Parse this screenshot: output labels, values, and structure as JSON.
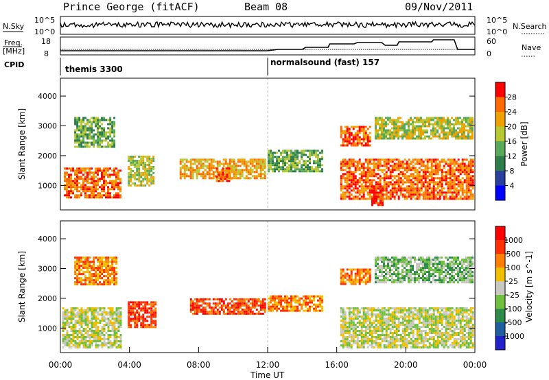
{
  "header": {
    "station": "Prince George (fitACF)",
    "beam": "Beam 08",
    "date": "09/Nov/2011"
  },
  "top_panels": {
    "nsky_label": "N.Sky",
    "nsearch_label": "N.Search",
    "freq_label_1": "Freq.",
    "freq_label_2": "[MHz]",
    "nave_label": "Nave",
    "cpid_label": "CPID",
    "n_ticks": [
      "10^5",
      "10^0"
    ],
    "n_ticks_right": [
      "10^5",
      "10^0"
    ],
    "freq_ticks": [
      "18",
      "8"
    ],
    "nave_ticks": [
      "60",
      "0"
    ],
    "cpid_segments": [
      {
        "label": "themis 3300",
        "start_hr": 0.0
      },
      {
        "label": "normalsound (fast) 157",
        "start_hr": 12.0
      }
    ]
  },
  "chart_data": [
    {
      "type": "heatmap",
      "name": "power",
      "title": "",
      "xlabel": "",
      "ylabel": "Slant Range [km]",
      "xlim": [
        0,
        24
      ],
      "ylim": [
        180,
        4600
      ],
      "yticks": [
        1000,
        2000,
        3000,
        4000
      ],
      "colorbar_label": "Power [dB]",
      "colorbar_ticks": [
        "28",
        "24",
        "20",
        "16",
        "12",
        "8",
        "4"
      ],
      "colors": [
        "#0000ff",
        "#2b3f9e",
        "#2e7c4a",
        "#5aa85a",
        "#b8c832",
        "#f0a000",
        "#ff6a00",
        "#ff0000"
      ],
      "regions": [
        {
          "t0": 0.2,
          "t1": 3.6,
          "r0": 500,
          "r1": 1600,
          "level": 6
        },
        {
          "t0": 0.8,
          "t1": 3.3,
          "r0": 2200,
          "r1": 3300,
          "level": 3
        },
        {
          "t0": 3.9,
          "t1": 5.5,
          "r0": 900,
          "r1": 2000,
          "level": 4
        },
        {
          "t0": 6.9,
          "t1": 12.0,
          "r0": 1200,
          "r1": 1900,
          "level": 5
        },
        {
          "t0": 9.0,
          "t1": 10.0,
          "r0": 1100,
          "r1": 1600,
          "level": 6
        },
        {
          "t0": 12.0,
          "t1": 15.3,
          "r0": 1400,
          "r1": 2200,
          "level": 3
        },
        {
          "t0": 16.2,
          "t1": 24.0,
          "r0": 500,
          "r1": 1900,
          "level": 6
        },
        {
          "t0": 16.2,
          "t1": 18.0,
          "r0": 2300,
          "r1": 3000,
          "level": 6
        },
        {
          "t0": 18.2,
          "t1": 24.0,
          "r0": 2500,
          "r1": 3300,
          "level": 4
        },
        {
          "t0": 18.0,
          "t1": 18.8,
          "r0": 300,
          "r1": 1000,
          "level": 7
        }
      ]
    },
    {
      "type": "heatmap",
      "name": "velocity",
      "title": "",
      "xlabel": "Time UT",
      "ylabel": "Slant Range [km]",
      "xlim": [
        0,
        24
      ],
      "ylim": [
        180,
        4600
      ],
      "yticks": [
        1000,
        2000,
        3000,
        4000
      ],
      "xticks": [
        "00:00",
        "04:00",
        "08:00",
        "12:00",
        "16:00",
        "20:00",
        "00:00"
      ],
      "colorbar_label": "Velocity [m s^-1]",
      "colorbar_ticks": [
        "1000",
        "500",
        "100",
        "25",
        "-25",
        "-100",
        "-500",
        "-1000"
      ],
      "colors": [
        "#2222cc",
        "#1f5fa0",
        "#2e8c4a",
        "#70c040",
        "#c8c8c0",
        "#f0c000",
        "#ff8000",
        "#ff3000",
        "#ff0000"
      ],
      "regions": [
        {
          "t0": 0.1,
          "t1": 3.6,
          "r0": 300,
          "r1": 1700,
          "level": 4
        },
        {
          "t0": 0.8,
          "t1": 3.4,
          "r0": 2400,
          "r1": 3400,
          "level": 6
        },
        {
          "t0": 3.9,
          "t1": 5.6,
          "r0": 1000,
          "r1": 1900,
          "level": 7
        },
        {
          "t0": 7.5,
          "t1": 12.0,
          "r0": 1400,
          "r1": 2000,
          "level": 7
        },
        {
          "t0": 12.0,
          "t1": 15.3,
          "r0": 1500,
          "r1": 2100,
          "level": 6
        },
        {
          "t0": 16.2,
          "t1": 24.0,
          "r0": 300,
          "r1": 1700,
          "level": 4
        },
        {
          "t0": 16.2,
          "t1": 18.0,
          "r0": 2400,
          "r1": 3000,
          "level": 6
        },
        {
          "t0": 18.2,
          "t1": 24.0,
          "r0": 2500,
          "r1": 3400,
          "level": 3
        }
      ]
    }
  ]
}
